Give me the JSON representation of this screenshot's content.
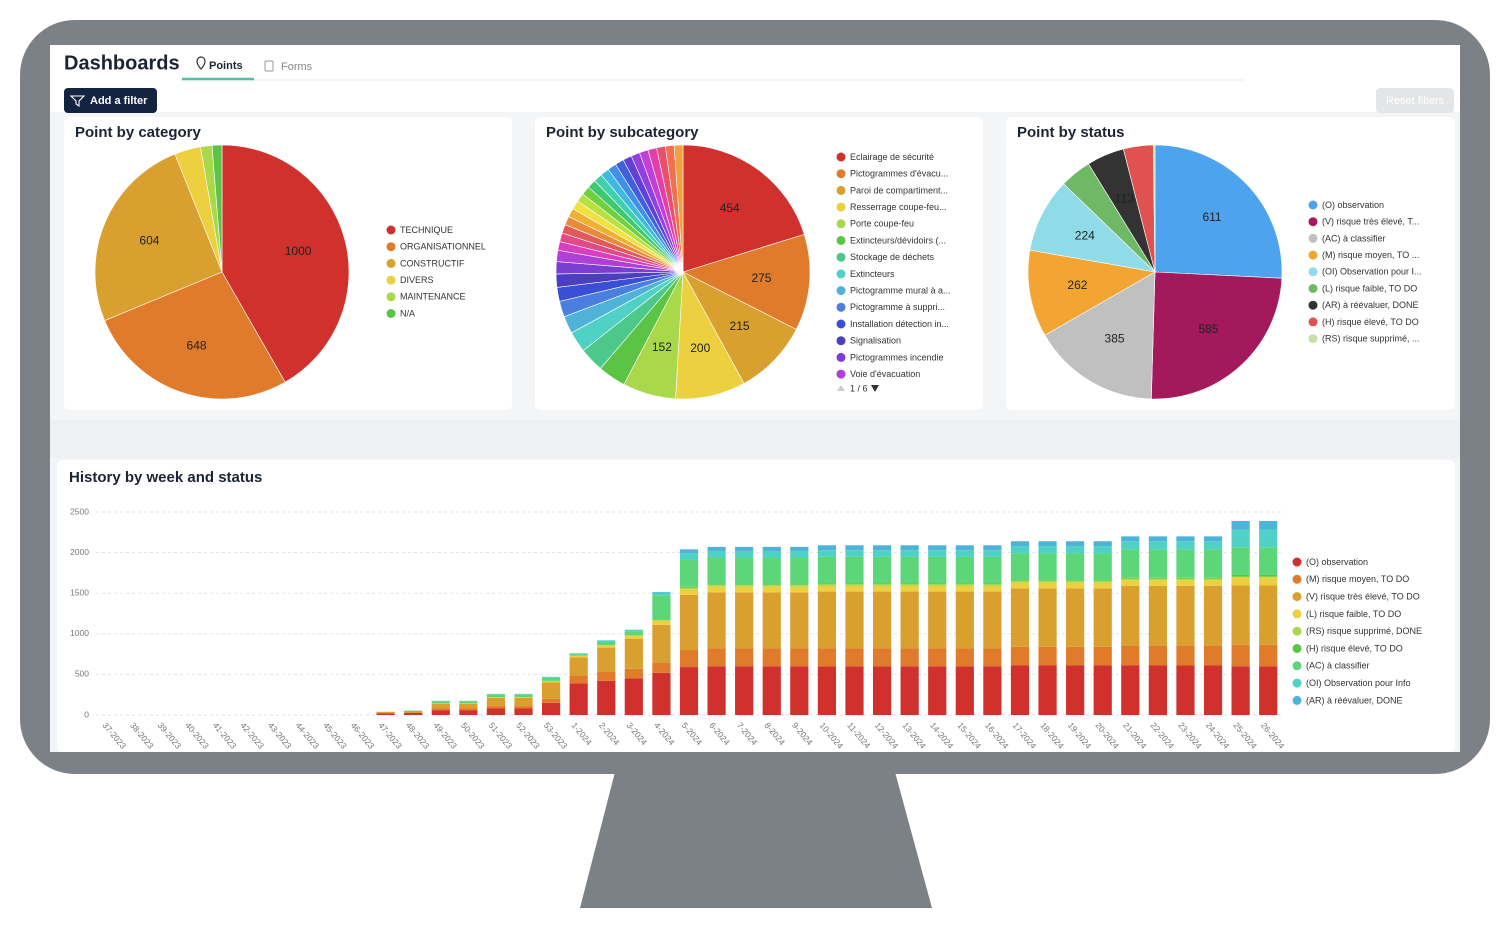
{
  "header": {
    "title": "Dashboards",
    "tabs": [
      "Points",
      "Forms"
    ],
    "add_filter": "Add a filter",
    "reset_filters": "Reset filters"
  },
  "legend_pager": "1 / 6",
  "chart_data": [
    {
      "type": "pie",
      "title": "Point by category",
      "categories": [
        "TECHNIQUE",
        "ORGANISATIONNEL",
        "CONSTRUCTIF",
        "DIVERS",
        "MAINTENANCE",
        "N/A"
      ],
      "values": [
        1000,
        648,
        604,
        80,
        35,
        30
      ],
      "colors": [
        "#d0312d",
        "#e07b2c",
        "#d9a030",
        "#ecd040",
        "#a9d94a",
        "#5cc444"
      ]
    },
    {
      "type": "pie",
      "title": "Point by subcategory",
      "categories": [
        "Eclairage de sécurité",
        "Pictogrammes d'évacu...",
        "Paroi de compartiment...",
        "Resserrage coupe-feu...",
        "Porte coupe-feu",
        "Extincteurs/dévidoirs (...",
        "Stockage de déchets",
        "Extincteurs",
        "Pictogramme mural à a...",
        "Pictogramme à suppri...",
        "Installation détection in...",
        "Signalisation",
        "Pictogrammes incendie",
        "Voie d'évacuation",
        null,
        null,
        null,
        null,
        null,
        null,
        null,
        null,
        null,
        null,
        null,
        null,
        null,
        null,
        null,
        null,
        null,
        null,
        null,
        null
      ],
      "values": [
        454,
        275,
        215,
        200,
        152,
        80,
        70,
        60,
        50,
        45,
        40,
        38,
        35,
        32,
        25,
        25,
        25,
        25,
        25,
        25,
        25,
        25,
        25,
        25,
        25,
        25,
        25,
        25,
        25,
        25,
        25,
        25,
        25,
        25
      ],
      "colors": [
        "#d0312d",
        "#e07b2c",
        "#d9a030",
        "#ecd040",
        "#a9d94a",
        "#5cc444",
        "#4cc98a",
        "#4fd1c5",
        "#4fb3d9",
        "#4a7fe0",
        "#3b4fd6",
        "#4b3fc0",
        "#7a3fd0",
        "#b03fd8",
        "#d83fc0",
        "#e04a8a",
        "#e05a5a",
        "#e88a3a",
        "#f0b030",
        "#f0e040",
        "#b8e040",
        "#70d040",
        "#40c870",
        "#40d0b0",
        "#40b8e0",
        "#4090e8",
        "#4060e0",
        "#6040d8",
        "#9040e0",
        "#c040d8",
        "#e040a8",
        "#e85070",
        "#f07050",
        "#f0a040"
      ]
    },
    {
      "type": "pie",
      "title": "Point by status",
      "categories": [
        "(O) observation",
        "(V) risque très élevé, T...",
        "(AC) à classifier",
        "(M) risque moyen, TO ...",
        "(OI) Observation pour I...",
        "(L) risque faible, TO DO",
        "(AR) à réévaluer, DONE",
        "(H) risque élevé, TO DO",
        "(RS) risque supprimé, ..."
      ],
      "values": [
        611,
        585,
        385,
        262,
        224,
        95,
        113,
        90,
        5
      ],
      "colors": [
        "#4da3ee",
        "#a3195b",
        "#c0c0c0",
        "#f3a534",
        "#8fdbe8",
        "#6fb865",
        "#333333",
        "#e0524f",
        "#c8dfa8"
      ]
    },
    {
      "type": "bar",
      "stacked": true,
      "title": "History by week and status",
      "grid": true,
      "legend": "right",
      "categories": [
        "37-2023",
        "38-2023",
        "39-2023",
        "40-2023",
        "41-2023",
        "42-2023",
        "43-2023",
        "44-2023",
        "45-2023",
        "46-2023",
        "47-2023",
        "48-2023",
        "49-2023",
        "50-2023",
        "51-2023",
        "52-2023",
        "53-2023",
        "1-2024",
        "2-2024",
        "3-2024",
        "4-2024",
        "5-2024",
        "6-2024",
        "7-2024",
        "8-2024",
        "9-2024",
        "10-2024",
        "11-2024",
        "12-2024",
        "13-2024",
        "14-2024",
        "15-2024",
        "16-2024",
        "17-2024",
        "18-2024",
        "19-2024",
        "20-2024",
        "21-2024",
        "22-2024",
        "23-2024",
        "24-2024",
        "25-2024",
        "26-2024"
      ],
      "ylim": [
        0,
        2500
      ],
      "yticks": [
        0,
        500,
        1000,
        1500,
        2000,
        2500
      ],
      "series": [
        {
          "name": "(O) observation",
          "color": "#d0312d",
          "values": [
            0,
            0,
            0,
            0,
            0,
            0,
            0,
            0,
            0,
            0,
            20,
            25,
            60,
            60,
            80,
            80,
            150,
            390,
            420,
            450,
            520,
            590,
            600,
            600,
            600,
            600,
            600,
            600,
            600,
            600,
            600,
            600,
            600,
            610,
            610,
            610,
            610,
            610,
            610,
            610,
            610,
            600,
            600
          ]
        },
        {
          "name": "(M) risque moyen, TO DO",
          "color": "#e07b2c",
          "values": [
            0,
            0,
            0,
            0,
            0,
            0,
            0,
            0,
            0,
            0,
            5,
            5,
            20,
            20,
            30,
            30,
            50,
            100,
            110,
            120,
            120,
            210,
            220,
            220,
            220,
            220,
            220,
            220,
            220,
            220,
            220,
            220,
            220,
            230,
            230,
            230,
            230,
            240,
            240,
            240,
            240,
            265,
            265
          ]
        },
        {
          "name": "(V) risque très élevé, TO DO",
          "color": "#d9a030",
          "values": [
            0,
            0,
            0,
            0,
            0,
            0,
            0,
            0,
            0,
            0,
            15,
            20,
            60,
            60,
            100,
            100,
            200,
            220,
            300,
            370,
            470,
            680,
            690,
            690,
            690,
            690,
            700,
            700,
            700,
            700,
            700,
            700,
            700,
            720,
            720,
            720,
            720,
            740,
            740,
            740,
            740,
            730,
            730
          ]
        },
        {
          "name": "(L) risque faible, TO DO",
          "color": "#ecd040",
          "values": [
            0,
            0,
            0,
            0,
            0,
            0,
            0,
            0,
            0,
            0,
            0,
            0,
            5,
            5,
            10,
            10,
            20,
            20,
            30,
            40,
            50,
            70,
            70,
            70,
            70,
            70,
            70,
            70,
            70,
            70,
            70,
            70,
            70,
            70,
            70,
            70,
            70,
            70,
            70,
            70,
            70,
            100,
            100
          ]
        },
        {
          "name": "(RS) risque supprimé, DONE",
          "color": "#a9d94a",
          "values": [
            0,
            0,
            0,
            0,
            0,
            0,
            0,
            0,
            0,
            0,
            0,
            0,
            0,
            0,
            0,
            0,
            0,
            0,
            0,
            0,
            10,
            20,
            20,
            20,
            20,
            20,
            20,
            20,
            20,
            20,
            20,
            20,
            20,
            20,
            20,
            20,
            20,
            20,
            20,
            20,
            20,
            10,
            10
          ]
        },
        {
          "name": "(H) risque élevé, TO DO",
          "color": "#5cc444",
          "values": [
            0,
            0,
            0,
            0,
            0,
            0,
            0,
            0,
            0,
            0,
            0,
            0,
            0,
            0,
            0,
            0,
            0,
            0,
            0,
            0,
            5,
            10,
            10,
            10,
            10,
            10,
            10,
            10,
            10,
            10,
            10,
            10,
            10,
            10,
            10,
            10,
            10,
            10,
            10,
            10,
            10,
            20,
            20
          ]
        },
        {
          "name": "(AC) à classifier",
          "color": "#5dd67a",
          "values": [
            0,
            0,
            0,
            0,
            0,
            0,
            0,
            0,
            0,
            0,
            0,
            5,
            25,
            25,
            30,
            30,
            40,
            20,
            40,
            50,
            300,
            330,
            330,
            330,
            330,
            330,
            330,
            330,
            330,
            330,
            330,
            330,
            330,
            330,
            330,
            330,
            330,
            350,
            350,
            350,
            350,
            340,
            340
          ]
        },
        {
          "name": "(OI) Observation pour Info",
          "color": "#4fd1c5",
          "values": [
            0,
            0,
            0,
            0,
            0,
            0,
            0,
            0,
            0,
            0,
            0,
            0,
            5,
            5,
            10,
            10,
            10,
            10,
            20,
            20,
            30,
            80,
            80,
            80,
            80,
            80,
            80,
            80,
            80,
            80,
            80,
            80,
            80,
            90,
            90,
            90,
            90,
            100,
            100,
            100,
            100,
            220,
            220
          ]
        },
        {
          "name": "(AR) à réévaluer, DONE",
          "color": "#4fb3d9",
          "values": [
            0,
            0,
            0,
            0,
            0,
            0,
            0,
            0,
            0,
            0,
            0,
            0,
            0,
            0,
            0,
            0,
            0,
            0,
            0,
            0,
            10,
            50,
            50,
            50,
            50,
            50,
            60,
            60,
            60,
            60,
            60,
            60,
            60,
            60,
            60,
            60,
            60,
            60,
            60,
            60,
            60,
            105,
            105
          ]
        }
      ]
    }
  ]
}
